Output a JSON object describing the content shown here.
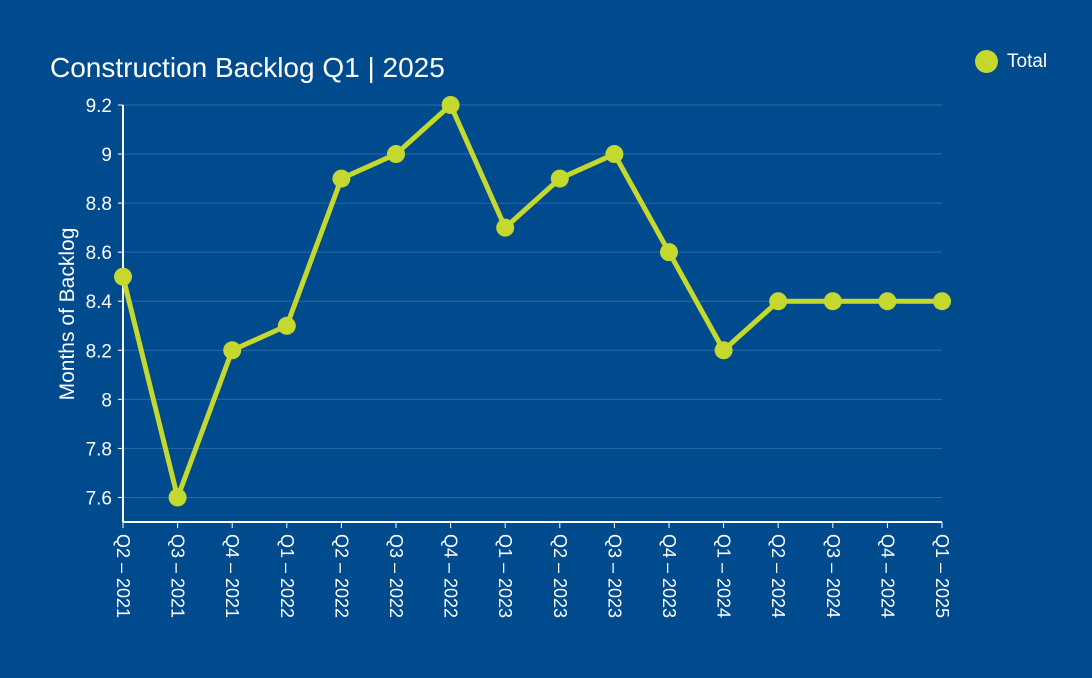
{
  "colors": {
    "background": "#004b8d",
    "line": "#c5d82e",
    "grid": "#2a6aa5",
    "axis": "#ffffff",
    "text": "#ffffff"
  },
  "chart_data": {
    "type": "line",
    "title": "Construction Backlog Q1 | 2025",
    "xlabel": "",
    "ylabel": "Months of Backlog",
    "categories": [
      "Q2 – 2021",
      "Q3 – 2021",
      "Q4 – 2021",
      "Q1 – 2022",
      "Q2 – 2022",
      "Q3 – 2022",
      "Q4 – 2022",
      "Q1 – 2023",
      "Q2 – 2023",
      "Q3 – 2023",
      "Q4 – 2023",
      "Q1 – 2024",
      "Q2 – 2024",
      "Q3 – 2024",
      "Q4 – 2024",
      "Q1 – 2025"
    ],
    "series": [
      {
        "name": "Total",
        "values": [
          8.5,
          7.6,
          8.2,
          8.3,
          8.9,
          9.0,
          9.2,
          8.7,
          8.9,
          9.0,
          8.6,
          8.2,
          8.4,
          8.4,
          8.4,
          8.4
        ]
      }
    ],
    "ylim": [
      7.5,
      9.2
    ],
    "yticks": [
      7.6,
      7.8,
      8,
      8.2,
      8.4,
      8.6,
      8.8,
      9,
      9.2
    ],
    "ytick_labels": [
      "7.6",
      "7.8",
      "8",
      "8.2",
      "8.4",
      "8.6",
      "8.8",
      "9",
      "9.2"
    ],
    "grid": true,
    "legend_position": "top-right",
    "legend": [
      "Total"
    ]
  }
}
